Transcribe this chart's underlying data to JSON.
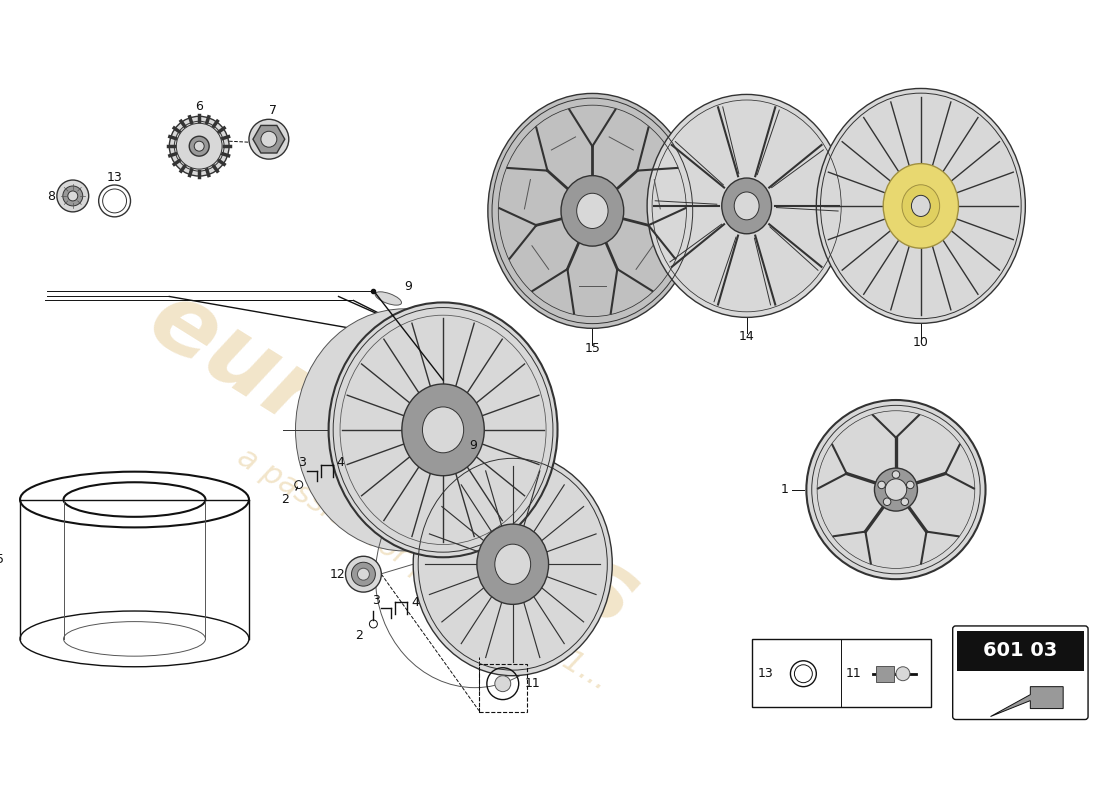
{
  "bg": "#ffffff",
  "wm_color": "#d4a850",
  "wm_alpha": 0.3,
  "diagram_code": "601 03",
  "gray_light": "#d8d8d8",
  "gray_mid": "#999999",
  "gray_dark": "#555555",
  "gray_darker": "#333333",
  "black": "#111111",
  "yellow_hub": "#e8d870",
  "rim_fill": "#e0e0e0"
}
